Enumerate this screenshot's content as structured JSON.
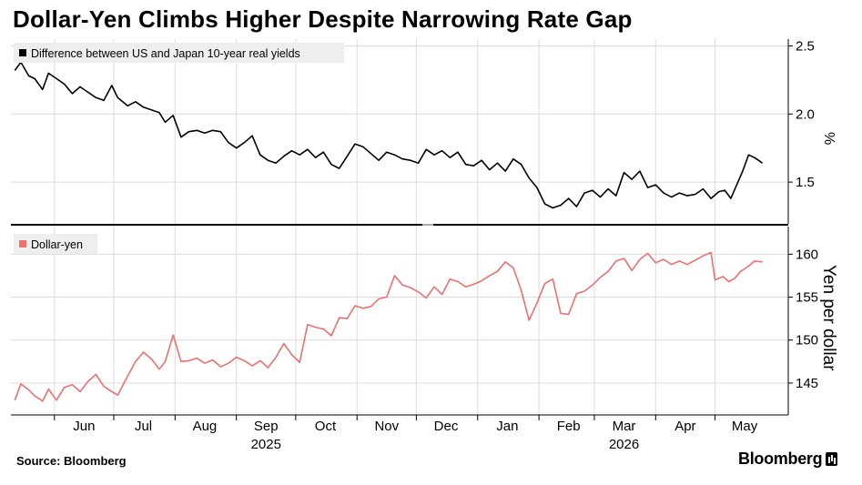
{
  "title": "Dollar-Yen Climbs Higher Despite Narrowing Rate Gap",
  "source": "Source: Bloomberg",
  "brand": "Bloomberg",
  "colors": {
    "top_series": "#000000",
    "bottom_series": "#f06f6f",
    "grid": "#dcdcdc"
  },
  "chart_data": [
    {
      "type": "line",
      "title": "",
      "ylabel": "%",
      "ylim": [
        1.2,
        2.55
      ],
      "yticks": [
        1.5,
        2.0,
        2.5
      ],
      "ytick_labels": [
        "1.5",
        "2.0",
        "2.5"
      ],
      "grid": true,
      "legend": "top-left",
      "series": [
        {
          "name": "Difference between US and Japan 10-year real yields",
          "color": "#000000",
          "points": [
            [
              "2025-05-12",
              2.32
            ],
            [
              "2025-05-15",
              2.38
            ],
            [
              "2025-05-19",
              2.28
            ],
            [
              "2025-05-22",
              2.26
            ],
            [
              "2025-05-26",
              2.18
            ],
            [
              "2025-05-29",
              2.3
            ],
            [
              "2025-06-02",
              2.26
            ],
            [
              "2025-06-06",
              2.22
            ],
            [
              "2025-06-10",
              2.15
            ],
            [
              "2025-06-14",
              2.2
            ],
            [
              "2025-06-18",
              2.16
            ],
            [
              "2025-06-22",
              2.12
            ],
            [
              "2025-06-26",
              2.1
            ],
            [
              "2025-06-30",
              2.21
            ],
            [
              "2025-07-03",
              2.12
            ],
            [
              "2025-07-08",
              2.06
            ],
            [
              "2025-07-12",
              2.09
            ],
            [
              "2025-07-16",
              2.05
            ],
            [
              "2025-07-20",
              2.03
            ],
            [
              "2025-07-24",
              2.01
            ],
            [
              "2025-07-27",
              1.94
            ],
            [
              "2025-07-31",
              1.99
            ],
            [
              "2025-08-04",
              1.83
            ],
            [
              "2025-08-08",
              1.87
            ],
            [
              "2025-08-12",
              1.88
            ],
            [
              "2025-08-16",
              1.86
            ],
            [
              "2025-08-20",
              1.88
            ],
            [
              "2025-08-24",
              1.87
            ],
            [
              "2025-08-28",
              1.79
            ],
            [
              "2025-09-01",
              1.75
            ],
            [
              "2025-09-05",
              1.79
            ],
            [
              "2025-09-09",
              1.84
            ],
            [
              "2025-09-13",
              1.7
            ],
            [
              "2025-09-17",
              1.66
            ],
            [
              "2025-09-21",
              1.64
            ],
            [
              "2025-09-25",
              1.69
            ],
            [
              "2025-09-29",
              1.73
            ],
            [
              "2025-10-03",
              1.7
            ],
            [
              "2025-10-07",
              1.74
            ],
            [
              "2025-10-11",
              1.68
            ],
            [
              "2025-10-15",
              1.72
            ],
            [
              "2025-10-19",
              1.63
            ],
            [
              "2025-10-23",
              1.6
            ],
            [
              "2025-10-27",
              1.69
            ],
            [
              "2025-10-31",
              1.78
            ],
            [
              "2025-11-04",
              1.76
            ],
            [
              "2025-11-08",
              1.71
            ],
            [
              "2025-11-12",
              1.66
            ],
            [
              "2025-11-16",
              1.72
            ],
            [
              "2025-11-20",
              1.7
            ],
            [
              "2025-11-24",
              1.67
            ],
            [
              "2025-11-28",
              1.66
            ],
            [
              "2025-12-02",
              1.64
            ],
            [
              "2025-12-06",
              1.74
            ],
            [
              "2025-12-10",
              1.7
            ],
            [
              "2025-12-14",
              1.73
            ],
            [
              "2025-12-18",
              1.68
            ],
            [
              "2025-12-22",
              1.72
            ],
            [
              "2025-12-26",
              1.63
            ],
            [
              "2025-12-30",
              1.62
            ],
            [
              "2026-01-03",
              1.66
            ],
            [
              "2026-01-07",
              1.59
            ],
            [
              "2026-01-11",
              1.64
            ],
            [
              "2026-01-15",
              1.58
            ],
            [
              "2026-01-19",
              1.67
            ],
            [
              "2026-01-23",
              1.63
            ],
            [
              "2026-01-27",
              1.53
            ],
            [
              "2026-01-31",
              1.46
            ],
            [
              "2026-02-04",
              1.34
            ],
            [
              "2026-02-08",
              1.31
            ],
            [
              "2026-02-12",
              1.33
            ],
            [
              "2026-02-16",
              1.38
            ],
            [
              "2026-02-20",
              1.32
            ],
            [
              "2026-02-24",
              1.42
            ],
            [
              "2026-02-28",
              1.44
            ],
            [
              "2026-03-04",
              1.39
            ],
            [
              "2026-03-08",
              1.45
            ],
            [
              "2026-03-12",
              1.4
            ],
            [
              "2026-03-16",
              1.57
            ],
            [
              "2026-03-20",
              1.52
            ],
            [
              "2026-03-24",
              1.58
            ],
            [
              "2026-03-28",
              1.46
            ],
            [
              "2026-04-01",
              1.48
            ],
            [
              "2026-04-05",
              1.42
            ],
            [
              "2026-04-09",
              1.39
            ],
            [
              "2026-04-13",
              1.42
            ],
            [
              "2026-04-17",
              1.4
            ],
            [
              "2026-04-21",
              1.41
            ],
            [
              "2026-04-25",
              1.45
            ],
            [
              "2026-04-29",
              1.38
            ],
            [
              "2026-05-03",
              1.43
            ],
            [
              "2026-05-06",
              1.44
            ],
            [
              "2026-05-09",
              1.38
            ],
            [
              "2026-05-12",
              1.48
            ],
            [
              "2026-05-15",
              1.58
            ],
            [
              "2026-05-18",
              1.7
            ],
            [
              "2026-05-21",
              1.68
            ],
            [
              "2026-05-25",
              1.64
            ]
          ]
        }
      ]
    },
    {
      "type": "line",
      "title": "",
      "xlabel": "",
      "ylabel": "Yen per dollar",
      "ylim": [
        141.5,
        163
      ],
      "yticks": [
        145,
        150,
        155,
        160
      ],
      "ytick_labels": [
        "145",
        "150",
        "155",
        "160"
      ],
      "grid": true,
      "legend": "top-left",
      "xticks": [
        {
          "date": "2025-06-01",
          "label": "Jun"
        },
        {
          "date": "2025-07-01",
          "label": "Jul"
        },
        {
          "date": "2025-08-01",
          "label": "Aug"
        },
        {
          "date": "2025-09-01",
          "label": "Sep"
        },
        {
          "date": "2025-10-01",
          "label": "Oct"
        },
        {
          "date": "2025-11-01",
          "label": "Nov"
        },
        {
          "date": "2025-12-01",
          "label": "Dec"
        },
        {
          "date": "2026-01-01",
          "label": "Jan"
        },
        {
          "date": "2026-02-01",
          "label": "Feb"
        },
        {
          "date": "2026-03-01",
          "label": "Mar"
        },
        {
          "date": "2026-04-01",
          "label": "Apr"
        },
        {
          "date": "2026-05-01",
          "label": "May"
        }
      ],
      "year_labels": [
        {
          "date": "2025-09-01",
          "label": "2025"
        },
        {
          "date": "2026-03-01",
          "label": "2026"
        }
      ],
      "series": [
        {
          "name": "Dollar-yen",
          "color": "#f06f6f",
          "points": [
            [
              "2025-05-12",
              143.0
            ],
            [
              "2025-05-15",
              144.9
            ],
            [
              "2025-05-19",
              144.2
            ],
            [
              "2025-05-22",
              143.5
            ],
            [
              "2025-05-26",
              142.9
            ],
            [
              "2025-05-29",
              144.3
            ],
            [
              "2025-06-02",
              143.0
            ],
            [
              "2025-06-06",
              144.5
            ],
            [
              "2025-06-10",
              144.8
            ],
            [
              "2025-06-14",
              144.0
            ],
            [
              "2025-06-18",
              145.2
            ],
            [
              "2025-06-22",
              146.0
            ],
            [
              "2025-06-26",
              144.6
            ],
            [
              "2025-06-30",
              144.0
            ],
            [
              "2025-07-03",
              143.6
            ],
            [
              "2025-07-08",
              145.8
            ],
            [
              "2025-07-12",
              147.5
            ],
            [
              "2025-07-16",
              148.6
            ],
            [
              "2025-07-20",
              147.8
            ],
            [
              "2025-07-24",
              146.6
            ],
            [
              "2025-07-27",
              147.5
            ],
            [
              "2025-07-31",
              150.6
            ],
            [
              "2025-08-04",
              147.5
            ],
            [
              "2025-08-08",
              147.6
            ],
            [
              "2025-08-12",
              147.9
            ],
            [
              "2025-08-16",
              147.3
            ],
            [
              "2025-08-20",
              147.7
            ],
            [
              "2025-08-24",
              146.9
            ],
            [
              "2025-08-28",
              147.3
            ],
            [
              "2025-09-01",
              148.0
            ],
            [
              "2025-09-05",
              147.6
            ],
            [
              "2025-09-09",
              147.0
            ],
            [
              "2025-09-13",
              147.6
            ],
            [
              "2025-09-17",
              146.8
            ],
            [
              "2025-09-21",
              148.0
            ],
            [
              "2025-09-25",
              149.6
            ],
            [
              "2025-09-29",
              148.3
            ],
            [
              "2025-10-03",
              147.4
            ],
            [
              "2025-10-07",
              151.8
            ],
            [
              "2025-10-11",
              151.5
            ],
            [
              "2025-10-15",
              151.3
            ],
            [
              "2025-10-19",
              150.5
            ],
            [
              "2025-10-23",
              152.6
            ],
            [
              "2025-10-27",
              152.5
            ],
            [
              "2025-10-31",
              154.0
            ],
            [
              "2025-11-04",
              153.7
            ],
            [
              "2025-11-08",
              153.9
            ],
            [
              "2025-11-12",
              154.8
            ],
            [
              "2025-11-16",
              155.0
            ],
            [
              "2025-11-20",
              157.5
            ],
            [
              "2025-11-24",
              156.4
            ],
            [
              "2025-11-28",
              156.1
            ],
            [
              "2025-12-02",
              155.6
            ],
            [
              "2025-12-06",
              154.9
            ],
            [
              "2025-12-10",
              156.2
            ],
            [
              "2025-12-14",
              155.3
            ],
            [
              "2025-12-18",
              157.1
            ],
            [
              "2025-12-22",
              156.8
            ],
            [
              "2025-12-26",
              156.2
            ],
            [
              "2025-12-30",
              156.5
            ],
            [
              "2026-01-03",
              156.9
            ],
            [
              "2026-01-07",
              157.5
            ],
            [
              "2026-01-11",
              158.0
            ],
            [
              "2026-01-15",
              159.1
            ],
            [
              "2026-01-19",
              158.4
            ],
            [
              "2026-01-23",
              155.8
            ],
            [
              "2026-01-27",
              152.3
            ],
            [
              "2026-01-31",
              154.3
            ],
            [
              "2026-02-04",
              156.6
            ],
            [
              "2026-02-08",
              157.1
            ],
            [
              "2026-02-12",
              153.1
            ],
            [
              "2026-02-16",
              153.0
            ],
            [
              "2026-02-20",
              155.4
            ],
            [
              "2026-02-24",
              155.7
            ],
            [
              "2026-02-28",
              156.4
            ],
            [
              "2026-03-04",
              157.3
            ],
            [
              "2026-03-08",
              158.0
            ],
            [
              "2026-03-12",
              159.2
            ],
            [
              "2026-03-16",
              159.5
            ],
            [
              "2026-03-20",
              158.1
            ],
            [
              "2026-03-24",
              159.4
            ],
            [
              "2026-03-28",
              160.1
            ],
            [
              "2026-04-01",
              159.0
            ],
            [
              "2026-04-05",
              159.4
            ],
            [
              "2026-04-09",
              158.8
            ],
            [
              "2026-04-13",
              159.2
            ],
            [
              "2026-04-17",
              158.8
            ],
            [
              "2026-04-21",
              159.3
            ],
            [
              "2026-04-25",
              159.8
            ],
            [
              "2026-04-29",
              160.2
            ],
            [
              "2026-05-01",
              157.0
            ],
            [
              "2026-05-05",
              157.4
            ],
            [
              "2026-05-08",
              156.8
            ],
            [
              "2026-05-11",
              157.2
            ],
            [
              "2026-05-14",
              158.0
            ],
            [
              "2026-05-18",
              158.6
            ],
            [
              "2026-05-21",
              159.2
            ],
            [
              "2026-05-25",
              159.1
            ]
          ]
        }
      ]
    }
  ]
}
